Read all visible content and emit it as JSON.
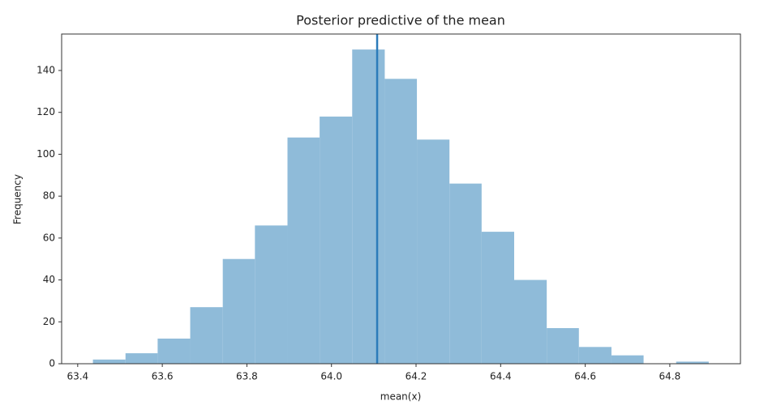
{
  "chart_data": {
    "type": "histogram",
    "title": "Posterior predictive of the mean",
    "xlabel": "mean(x)",
    "ylabel": "Frequency",
    "bins": [
      63.436,
      63.513,
      63.589,
      63.666,
      63.743,
      63.819,
      63.896,
      63.972,
      64.049,
      64.126,
      64.202,
      64.279,
      64.355,
      64.432,
      64.509,
      64.585,
      64.662,
      64.738,
      64.815,
      64.892
    ],
    "values": [
      2,
      5,
      12,
      27,
      50,
      66,
      108,
      118,
      150,
      136,
      107,
      86,
      63,
      40,
      17,
      8,
      4,
      0,
      1
    ],
    "color": "#8fbbd9",
    "vline": 64.108,
    "vline_color": "#2b7bba",
    "xlim": [
      63.362,
      64.967
    ],
    "ylim": [
      0,
      157.4
    ],
    "xticks": [
      63.4,
      63.6,
      63.8,
      {
        "value": 64.0,
        "label": "64.0"
      },
      64.2,
      64.4,
      64.6,
      64.8
    ],
    "yticks": [
      0,
      20,
      40,
      60,
      80,
      100,
      120,
      140
    ]
  }
}
